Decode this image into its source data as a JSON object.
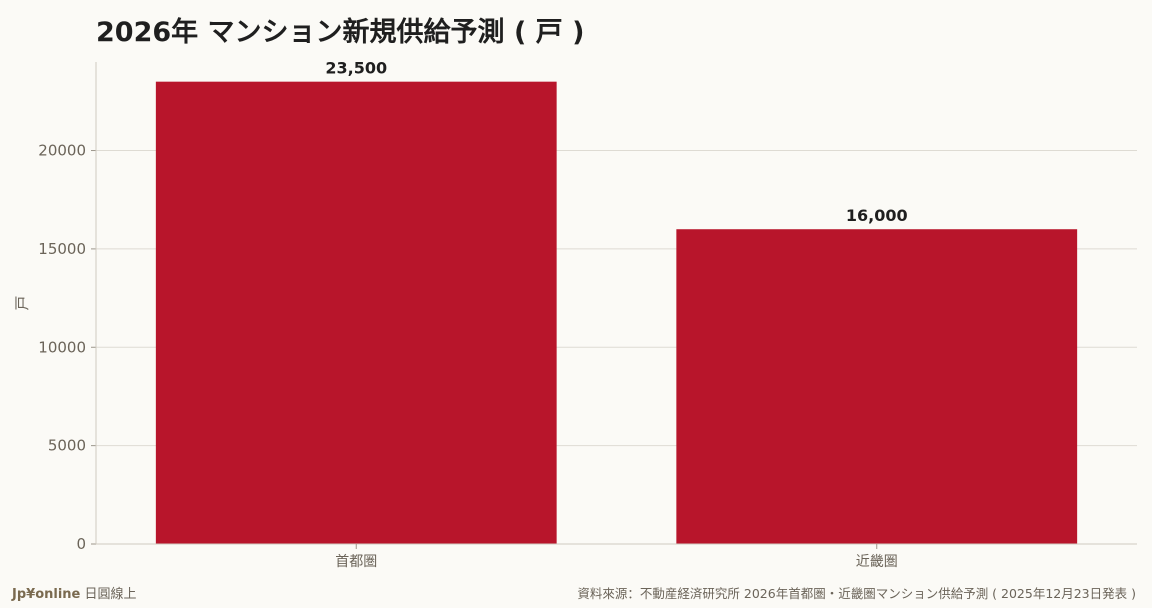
{
  "chart_data": {
    "type": "bar",
    "title": "2026年 マンション新規供給予測 ( 戸 )",
    "ylabel": "戸",
    "xlabel": "",
    "categories": [
      "首都圏",
      "近畿圏"
    ],
    "values": [
      23500,
      16000
    ],
    "value_labels": [
      "23,500",
      "16,000"
    ],
    "ylim": [
      0,
      24500
    ],
    "yticks": [
      0,
      5000,
      10000,
      15000,
      20000
    ],
    "ytick_labels": [
      "0",
      "5000",
      "10000",
      "15000",
      "20000"
    ],
    "grid": true,
    "bar_color": "#b8152b"
  },
  "footer": {
    "brand": "Jp¥online",
    "brand_suffix": "日圓線上",
    "source": "資料來源：不動産経済研究所 2026年首都圏・近畿圏マンション供給予測 ( 2025年12月23日発表 )"
  }
}
